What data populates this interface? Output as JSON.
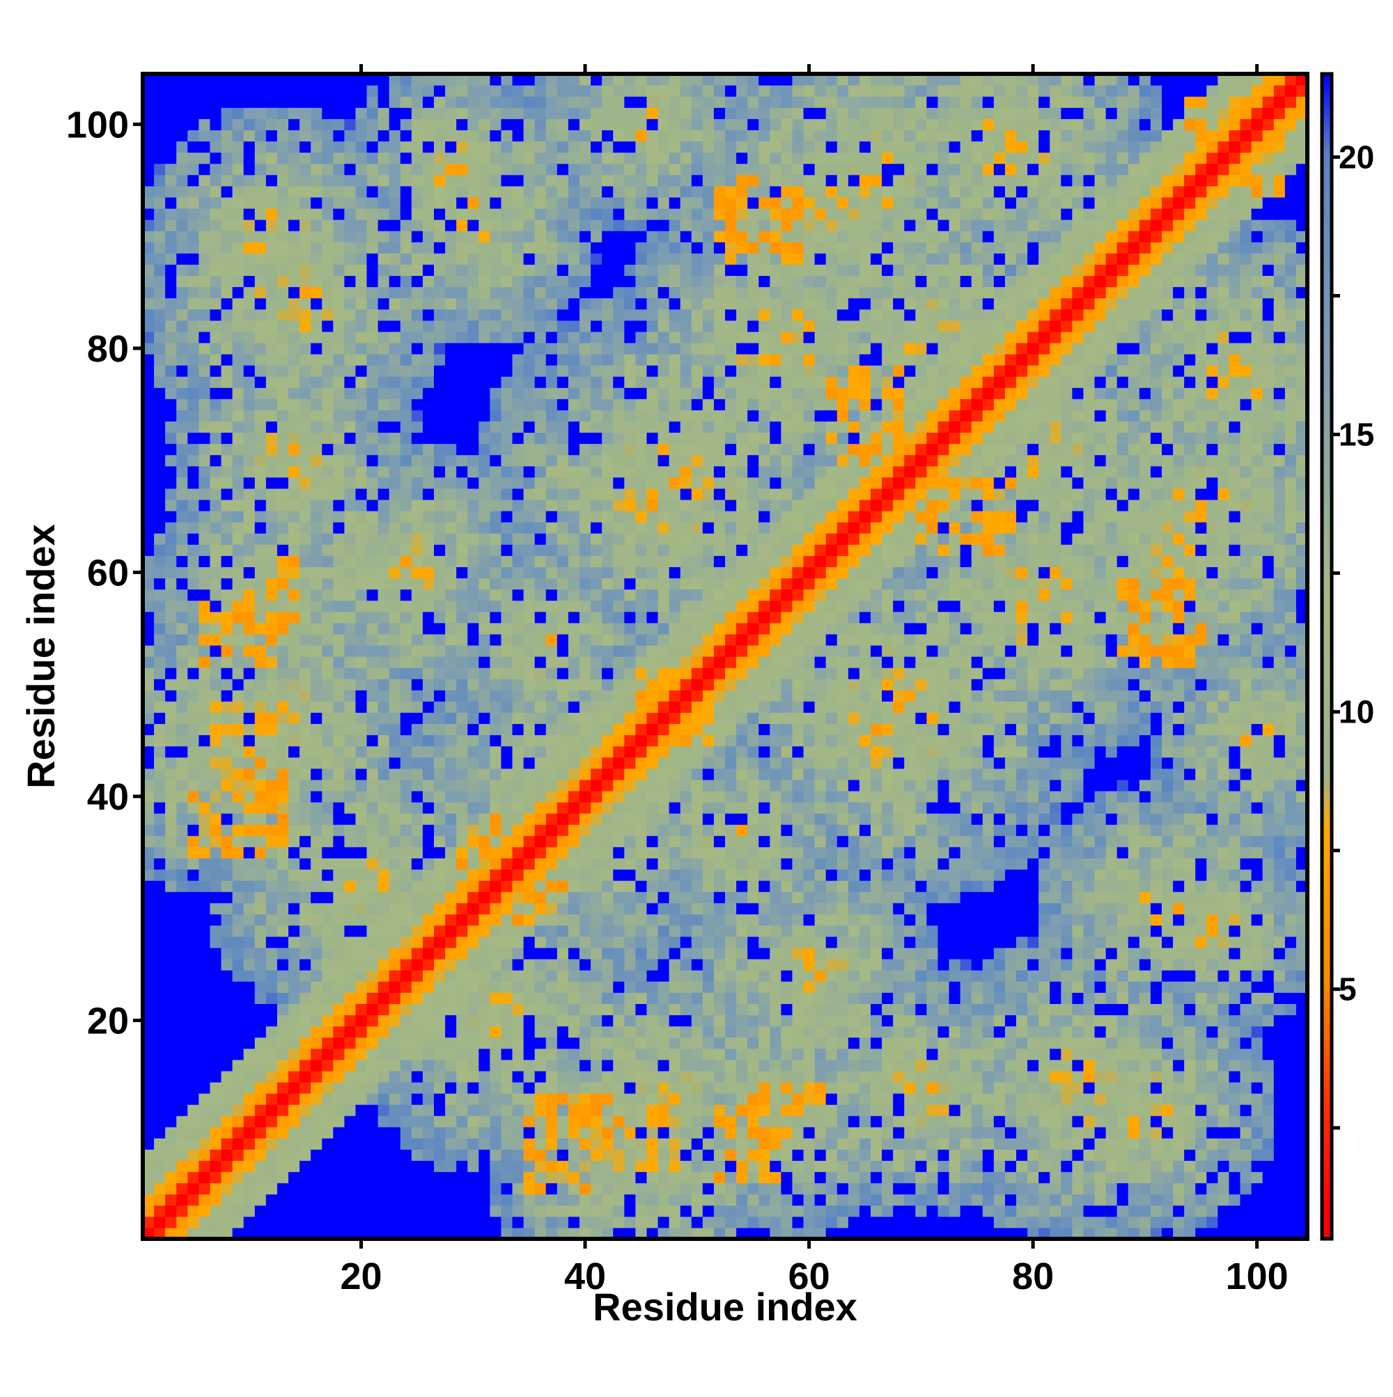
{
  "chart_data": {
    "type": "heatmap",
    "title": "",
    "xlabel": "Residue index",
    "ylabel": "Residue index",
    "n_residues": 104,
    "xlim": [
      0.5,
      104.5
    ],
    "ylim": [
      0.5,
      104.5
    ],
    "x_ticks": [
      20,
      40,
      60,
      80,
      100
    ],
    "y_ticks": [
      20,
      40,
      60,
      80,
      100
    ],
    "x_tick_labels": [
      "20",
      "40",
      "60",
      "80",
      "100"
    ],
    "y_tick_labels": [
      "20",
      "40",
      "60",
      "80",
      "100"
    ],
    "colorbar": {
      "range": [
        0.5,
        21.5
      ],
      "ticks": [
        5,
        10,
        15,
        20
      ],
      "tick_labels": [
        "5",
        "10",
        "15",
        "20"
      ],
      "ticks_unlabeled": [
        2.5,
        7.5,
        12.5,
        17.5
      ],
      "placement": "right"
    },
    "colors": {
      "contact_red": "#ff0000",
      "near_orange": "#ff8c00",
      "mid_olive": "#a8ba8a",
      "far_steel": "#5f88c0",
      "background_blue": "#0000ff",
      "frame": "#000000"
    },
    "value_scale": [
      {
        "value": 1,
        "color": "#ff0000"
      },
      {
        "value": 3,
        "color": "#ff3300"
      },
      {
        "value": 5,
        "color": "#ff8800"
      },
      {
        "value": 8,
        "color": "#ffaa00"
      },
      {
        "value": 8.8,
        "color": "#9cb48c"
      },
      {
        "value": 12,
        "color": "#a6b984"
      },
      {
        "value": 16,
        "color": "#7f9fb0"
      },
      {
        "value": 20,
        "color": "#5b86c2"
      },
      {
        "value": 21.5,
        "color": "#0000ff"
      }
    ],
    "matrix_description": "Symmetric residue-pair distance map: near-zero values along the diagonal (red), close contacts (orange) in blocks off the diagonal, intermediate distances (olive/grey-blue), and distances above the cutoff shown as saturated blue.",
    "contact_blocks": [
      {
        "x": [
          12,
          14
        ],
        "y": [
          55,
          61
        ],
        "level": 5
      },
      {
        "x": [
          8,
          12
        ],
        "y": [
          52,
          57
        ],
        "level": 5
      },
      {
        "x": [
          8,
          13
        ],
        "y": [
          35,
          43
        ],
        "level": 5
      },
      {
        "x": [
          30,
          32
        ],
        "y": [
          31,
          38
        ],
        "level": 5
      },
      {
        "x": [
          34,
          38
        ],
        "y": [
          29,
          32
        ],
        "level": 5
      },
      {
        "x": [
          35,
          40
        ],
        "y": [
          5,
          11
        ],
        "level": 5
      },
      {
        "x": [
          52,
          57
        ],
        "y": [
          6,
          10
        ],
        "level": 5
      },
      {
        "x": [
          56,
          59
        ],
        "y": [
          11,
          15
        ],
        "level": 5
      },
      {
        "x": [
          53,
          59
        ],
        "y": [
          88,
          95
        ],
        "level": 5
      },
      {
        "x": [
          62,
          66
        ],
        "y": [
          70,
          76
        ],
        "level": 5
      },
      {
        "x": [
          72,
          78
        ],
        "y": [
          62,
          68
        ],
        "level": 5
      },
      {
        "x": [
          90,
          94
        ],
        "y": [
          52,
          58
        ],
        "level": 5
      },
      {
        "x": [
          94,
          102
        ],
        "y": [
          94,
          102
        ],
        "level": 5
      },
      {
        "x": [
          45,
          48
        ],
        "y": [
          45,
          51
        ],
        "level": 5
      },
      {
        "x": [
          41,
          43
        ],
        "y": [
          41,
          45
        ],
        "level": 5
      }
    ]
  }
}
